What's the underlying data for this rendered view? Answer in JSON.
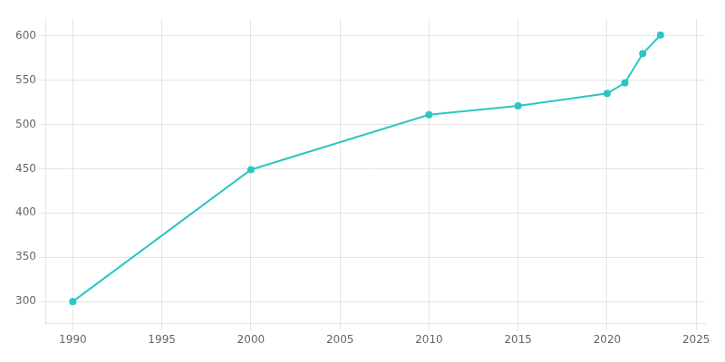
{
  "chart_data": {
    "type": "line",
    "x": [
      1990,
      2000,
      2010,
      2015,
      2020,
      2021,
      2022,
      2023
    ],
    "values": [
      300,
      449,
      511,
      521,
      535,
      547,
      580,
      601
    ],
    "color": "#2DC5C5",
    "marker": "circle",
    "xlim": [
      1988.5,
      2025.5
    ],
    "ylim": [
      275,
      620
    ],
    "xticks": [
      1990,
      1995,
      2000,
      2005,
      2010,
      2015,
      2020,
      2025
    ],
    "yticks": [
      300,
      350,
      400,
      450,
      500,
      550,
      600
    ],
    "grid": true
  }
}
